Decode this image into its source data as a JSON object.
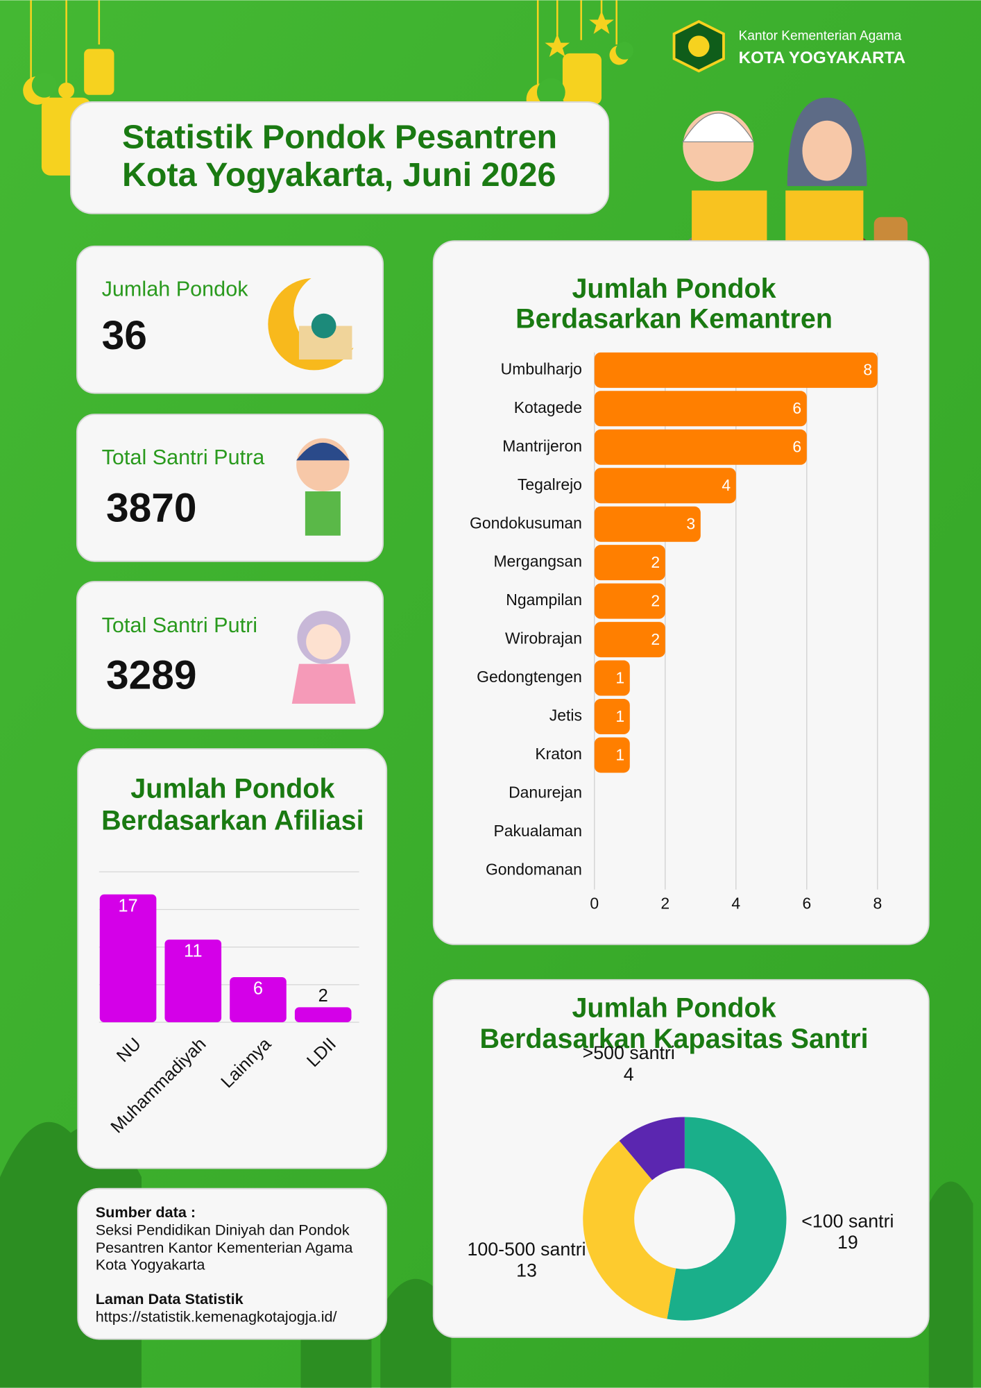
{
  "header": {
    "org": "Kantor Kementerian Agama",
    "city": "KOTA YOGYAKARTA",
    "title": [
      "Statistik Pondok Pesantren",
      "Kota Yogyakarta, Juni 2026"
    ]
  },
  "stats": [
    {
      "label": "Jumlah Pondok",
      "value": 36
    },
    {
      "label": "Total Santri Putra",
      "value": 3870
    },
    {
      "label": "Total Santri Putri",
      "value": 3289
    }
  ],
  "chart_data": [
    {
      "type": "barh",
      "title": [
        "Jumlah Pondok",
        "Berdasarkan Kemantren"
      ],
      "categories": [
        "Umbulharjo",
        "Kotagede",
        "Mantrijeron",
        "Tegalrejo",
        "Gondokusuman",
        "Mergangsan",
        "Ngampilan",
        "Wirobrajan",
        "Gedongtengen",
        "Jetis",
        "Kraton",
        "Danurejan",
        "Pakualaman",
        "Gondomanan"
      ],
      "values": [
        8,
        6,
        6,
        4,
        3,
        2,
        2,
        2,
        1,
        1,
        1,
        0,
        0,
        0
      ],
      "color": "#ff7f00",
      "xlim": [
        0,
        8
      ],
      "xticks": [
        0,
        2,
        4,
        6,
        8
      ],
      "grid": true
    },
    {
      "type": "bar",
      "title": [
        "Jumlah Pondok",
        "Berdasarkan Afiliasi"
      ],
      "categories": [
        "NU",
        "Muhammadiyah",
        "Lainnya",
        "LDII"
      ],
      "values": [
        17,
        11,
        6,
        2
      ],
      "color": "#d400e8",
      "ylim": [
        0,
        20
      ],
      "yticks": [
        0,
        5,
        10,
        15,
        20
      ],
      "grid": true
    },
    {
      "type": "donut",
      "title": [
        "Jumlah Pondok",
        "Berdasarkan Kapasitas Santri"
      ],
      "categories": [
        "<100 santri",
        "100-500 santri",
        ">500 santri"
      ],
      "values": [
        19,
        13,
        4
      ],
      "colors": [
        "#1aaf8a",
        "#fdcb2e",
        "#5b26b0"
      ]
    }
  ],
  "source": {
    "heading": "Sumber data :",
    "lines": [
      "Seksi Pendidikan Diniyah dan Pondok",
      "Pesantren Kantor Kementerian Agama",
      "Kota Yogyakarta"
    ],
    "link_heading": "Laman Data Statistik",
    "link": "https://statistik.kemenagkotajogja.id/"
  }
}
